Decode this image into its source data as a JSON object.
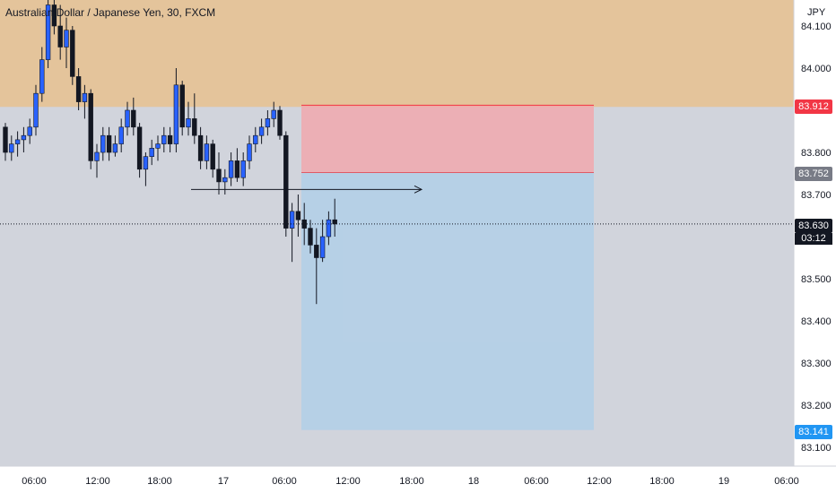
{
  "title": "Australian Dollar / Japanese Yen, 30, FXCM",
  "currency": "JPY",
  "badges": {
    "stop": {
      "value": "83.912",
      "color": "#f23645"
    },
    "entry": {
      "value": "83.752",
      "color": "#787b86"
    },
    "current": {
      "value": "83.630",
      "color": "#131722"
    },
    "countdown": "03:12",
    "target": {
      "value": "83.141",
      "color": "#2196f3"
    }
  },
  "colors": {
    "up": "#2962ff",
    "down": "#131722",
    "supply_zone": "#e4c49b",
    "plot_bg": "#d1d4dc",
    "stop_zone": "#f4a3a8",
    "target_zone": "#b2cfe8"
  },
  "chart_data": {
    "type": "candlestick",
    "symbol": "Australian Dollar / Japanese Yen",
    "interval": "30",
    "source": "FXCM",
    "y_axis": {
      "ticks": [
        84.1,
        84.0,
        83.9,
        83.8,
        83.7,
        83.6,
        83.5,
        83.4,
        83.3,
        83.2,
        83.1
      ],
      "range": [
        83.052,
        84.17
      ]
    },
    "x_axis": {
      "tick_labels": [
        "06:00",
        "12:00",
        "18:00",
        "17",
        "06:00",
        "12:00",
        "18:00",
        "18",
        "06:00",
        "12:00",
        "18:00",
        "19",
        "06:00"
      ]
    },
    "candles": [
      [
        83.86,
        83.87,
        83.78,
        83.8
      ],
      [
        83.8,
        83.84,
        83.78,
        83.82
      ],
      [
        83.82,
        83.85,
        83.79,
        83.83
      ],
      [
        83.83,
        83.86,
        83.8,
        83.84
      ],
      [
        83.84,
        83.88,
        83.82,
        83.86
      ],
      [
        83.86,
        83.96,
        83.84,
        83.94
      ],
      [
        83.94,
        84.05,
        83.92,
        84.02
      ],
      [
        84.02,
        84.18,
        84.0,
        84.15
      ],
      [
        84.15,
        84.19,
        84.08,
        84.1
      ],
      [
        84.1,
        84.15,
        84.02,
        84.05
      ],
      [
        84.05,
        84.12,
        84.0,
        84.09
      ],
      [
        84.09,
        84.1,
        83.96,
        83.98
      ],
      [
        83.98,
        84.0,
        83.9,
        83.92
      ],
      [
        83.92,
        83.96,
        83.88,
        83.94
      ],
      [
        83.94,
        83.95,
        83.76,
        83.78
      ],
      [
        83.78,
        83.82,
        83.74,
        83.8
      ],
      [
        83.8,
        83.86,
        83.78,
        83.84
      ],
      [
        83.84,
        83.86,
        83.78,
        83.8
      ],
      [
        83.8,
        83.84,
        83.79,
        83.82
      ],
      [
        83.82,
        83.88,
        83.8,
        83.86
      ],
      [
        83.86,
        83.92,
        83.84,
        83.9
      ],
      [
        83.9,
        83.93,
        83.84,
        83.86
      ],
      [
        83.86,
        83.87,
        83.74,
        83.76
      ],
      [
        83.76,
        83.8,
        83.72,
        83.79
      ],
      [
        83.79,
        83.83,
        83.77,
        83.81
      ],
      [
        83.81,
        83.84,
        83.78,
        83.82
      ],
      [
        83.82,
        83.86,
        83.8,
        83.84
      ],
      [
        83.84,
        83.86,
        83.8,
        83.82
      ],
      [
        83.82,
        84.0,
        83.8,
        83.96
      ],
      [
        83.96,
        83.97,
        83.84,
        83.86
      ],
      [
        83.86,
        83.92,
        83.84,
        83.88
      ],
      [
        83.88,
        83.94,
        83.82,
        83.84
      ],
      [
        83.84,
        83.86,
        83.76,
        83.78
      ],
      [
        83.78,
        83.84,
        83.76,
        83.82
      ],
      [
        83.82,
        83.83,
        83.74,
        83.76
      ],
      [
        83.76,
        83.8,
        83.7,
        83.73
      ],
      [
        83.73,
        83.76,
        83.7,
        83.74
      ],
      [
        83.74,
        83.8,
        83.72,
        83.78
      ],
      [
        83.78,
        83.81,
        83.73,
        83.74
      ],
      [
        83.74,
        83.8,
        83.72,
        83.78
      ],
      [
        83.78,
        83.84,
        83.76,
        83.82
      ],
      [
        83.82,
        83.86,
        83.8,
        83.84
      ],
      [
        83.84,
        83.88,
        83.82,
        83.86
      ],
      [
        83.86,
        83.9,
        83.84,
        83.88
      ],
      [
        83.88,
        83.92,
        83.86,
        83.9
      ],
      [
        83.9,
        83.91,
        83.83,
        83.84
      ],
      [
        83.84,
        83.85,
        83.6,
        83.62
      ],
      [
        83.62,
        83.68,
        83.54,
        83.66
      ],
      [
        83.66,
        83.7,
        83.6,
        83.64
      ],
      [
        83.64,
        83.68,
        83.58,
        83.62
      ],
      [
        83.62,
        83.64,
        83.56,
        83.58
      ],
      [
        83.58,
        83.62,
        83.44,
        83.55
      ],
      [
        83.55,
        83.64,
        83.54,
        83.6
      ],
      [
        83.6,
        83.66,
        83.58,
        83.64
      ],
      [
        83.64,
        83.69,
        83.6,
        83.63
      ]
    ],
    "annotations": {
      "supply_zone": {
        "from": 83.908,
        "to": 84.17
      },
      "short_position": {
        "entry": 83.752,
        "stop": 83.912,
        "target": 83.141
      },
      "horizontal_ray": {
        "price": 83.712
      },
      "current_price": 83.63
    }
  }
}
